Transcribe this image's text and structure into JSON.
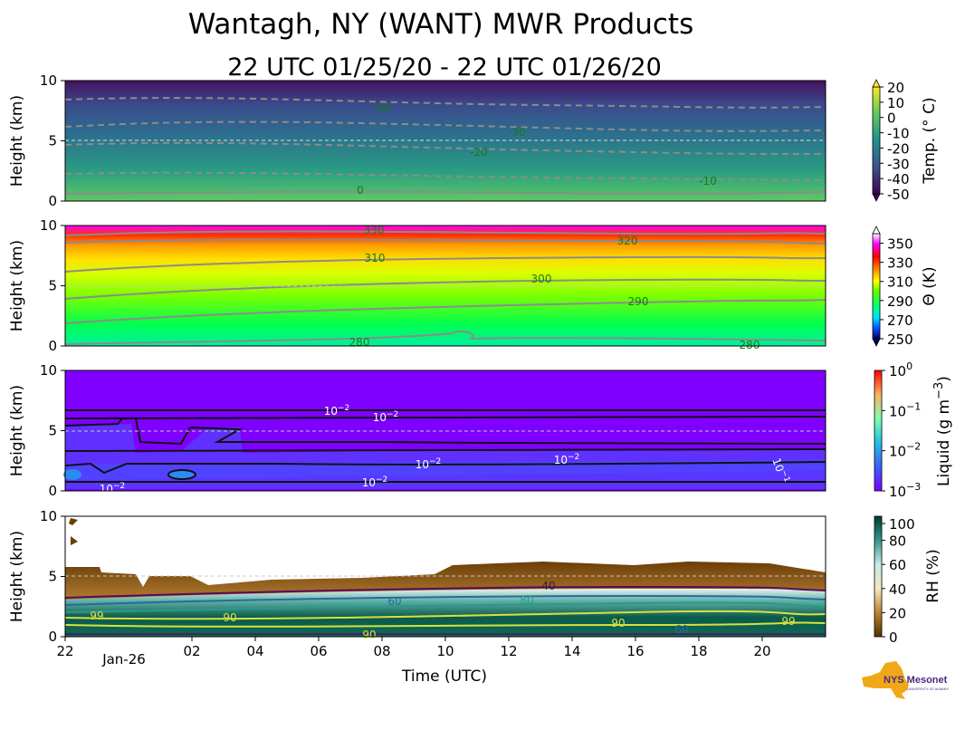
{
  "figure": {
    "title": "Wantagh, NY (WANT) MWR Products",
    "subtitle": "22 UTC 01/25/20 - 22 UTC 01/26/20",
    "xlabel": "Time (UTC)",
    "ylabel": "Height (km)",
    "logo": {
      "brand": "NYS Mesonet",
      "sub": "UNIVERSITY AT ALBANY"
    }
  },
  "chart_data": [
    {
      "type": "heatmap",
      "panel": "temperature",
      "ylabel": "Height (km)",
      "ylim": [
        0,
        10
      ],
      "yticks": [
        "0",
        "5",
        "10"
      ],
      "colorbar": {
        "label": "Temp. (° C)",
        "ticks": [
          "20",
          "10",
          "0",
          "-10",
          "-20",
          "-30",
          "-40",
          "-50"
        ],
        "range": [
          -50,
          20
        ]
      },
      "contour_labels": [
        "-40",
        "-30",
        "-20",
        "-10",
        "0"
      ]
    },
    {
      "type": "heatmap",
      "panel": "potential-temperature",
      "ylabel": "Height (km)",
      "ylim": [
        0,
        10
      ],
      "yticks": [
        "0",
        "5",
        "10"
      ],
      "colorbar": {
        "label": "Θ (K)",
        "ticks": [
          "350",
          "330",
          "310",
          "290",
          "270",
          "250"
        ],
        "range": [
          250,
          360
        ]
      },
      "contour_labels": [
        "330",
        "320",
        "310",
        "300",
        "290",
        "280",
        "280"
      ]
    },
    {
      "type": "heatmap",
      "panel": "liquid",
      "ylabel": "Height (km)",
      "ylim": [
        0,
        10
      ],
      "yticks": [
        "0",
        "5",
        "10"
      ],
      "colorbar": {
        "label": "Liquid (g m",
        "label_exp": "−3",
        "label_end": ")",
        "ticks": [
          {
            "base": "10",
            "exp": "0"
          },
          {
            "base": "10",
            "exp": "−1"
          },
          {
            "base": "10",
            "exp": "−2"
          },
          {
            "base": "10",
            "exp": "−3"
          }
        ],
        "scale": "log"
      },
      "contour_labels": [
        {
          "base": "10",
          "exp": "−2"
        },
        {
          "base": "10",
          "exp": "−2"
        },
        {
          "base": "10",
          "exp": "−2"
        },
        {
          "base": "10",
          "exp": "−2"
        },
        {
          "base": "10",
          "exp": "−2"
        },
        {
          "base": "10",
          "exp": "−2"
        },
        {
          "base": "10",
          "exp": "−1"
        }
      ]
    },
    {
      "type": "heatmap",
      "panel": "relative-humidity",
      "ylabel": "Height (km)",
      "ylim": [
        0,
        10
      ],
      "yticks": [
        "0",
        "5",
        "10"
      ],
      "colorbar": {
        "label": "RH (%)",
        "ticks": [
          "100",
          "80",
          "60",
          "40",
          "20",
          "0"
        ],
        "range": [
          0,
          100
        ]
      },
      "contour_labels": [
        "40",
        "60",
        "60",
        "80",
        "90",
        "90",
        "90",
        "99",
        "99"
      ],
      "xticks": [
        "22",
        "02",
        "04",
        "06",
        "08",
        "10",
        "12",
        "14",
        "16",
        "18",
        "20"
      ],
      "xtick_sub": "Jan-26"
    }
  ],
  "colors": {
    "dashed_line": "#bbbbbb",
    "contour_grey": "#8c8c8c",
    "contour_green": "#1a7a1a",
    "rh_brown": "#7a4a0a",
    "logo_gold": "#f0a818",
    "logo_purple": "#4b2a80"
  }
}
